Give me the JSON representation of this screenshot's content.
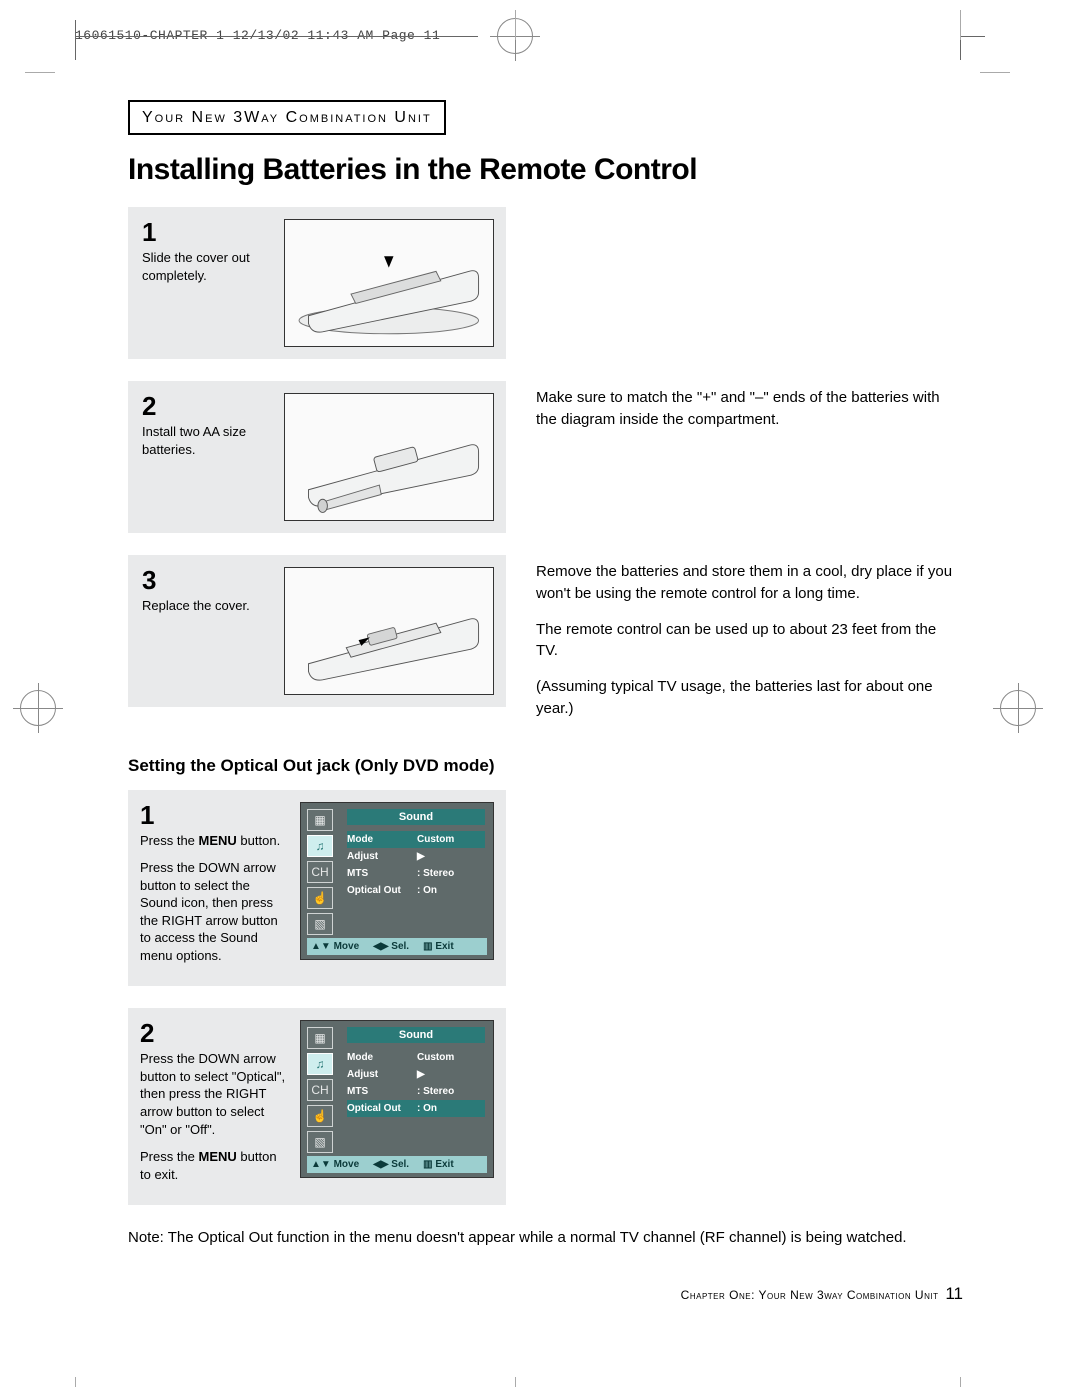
{
  "print_header": "16061510-CHAPTER 1  12/13/02 11:43 AM  Page 11",
  "section_label": "Your New 3Way Combination Unit",
  "main_heading": "Installing Batteries in the Remote Control",
  "steps": [
    {
      "num": "1",
      "desc": "Slide the cover out completely."
    },
    {
      "num": "2",
      "desc": "Install two AA size batteries."
    },
    {
      "num": "3",
      "desc": "Replace the cover."
    }
  ],
  "step2_side": "Make sure to match the \"+\" and \"–\" ends of the batteries with the diagram inside the compartment.",
  "step3_side_a": "Remove the batteries and store them in a cool, dry place if you won't be using the remote control for a long time.",
  "step3_side_b": "The remote control can be used up to about 23 feet from the TV.",
  "step3_side_c": "(Assuming typical TV usage, the batteries last for about one year.)",
  "sub_heading": "Setting the Optical Out jack (Only DVD mode)",
  "menu_steps": [
    {
      "num": "1",
      "desc_parts": [
        {
          "t": "Press the ",
          "b": false
        },
        {
          "t": "MENU",
          "b": true
        },
        {
          "t": " button.",
          "b": false
        }
      ],
      "desc2": "Press the DOWN arrow button to select  the Sound icon, then press the RIGHT arrow button to access the Sound menu options.",
      "highlight_row": 0
    },
    {
      "num": "2",
      "desc2": "Press the DOWN arrow button to select \"Optical\", then press the RIGHT arrow  button to select \"On\" or \"Off\".",
      "desc3_parts": [
        {
          "t": "Press the ",
          "b": false
        },
        {
          "t": "MENU",
          "b": true
        },
        {
          "t": " button to exit.",
          "b": false
        }
      ],
      "highlight_row": 3
    }
  ],
  "osd": {
    "title": "Sound",
    "rows": [
      {
        "k": "Mode",
        "v": "Custom"
      },
      {
        "k": "Adjust",
        "v": "▶"
      },
      {
        "k": "MTS",
        "v": ": Stereo"
      },
      {
        "k": "Optical Out",
        "v": ": On"
      }
    ],
    "footer": {
      "move": "Move",
      "sel": "Sel.",
      "exit": "Exit"
    },
    "icons": [
      "▦",
      "♫",
      "CH",
      "☝",
      "▧"
    ],
    "colors": {
      "bg": "#5f6a6a",
      "header": "#2b7a78",
      "footer": "#9ccfcf",
      "footer_text": "#0b3a3a",
      "text": "#ffffff",
      "icon_sel_bg": "#cfeeee"
    }
  },
  "note": "Note: The Optical Out function in the menu doesn't appear while a normal TV channel (RF channel) is being watched.",
  "footer": {
    "text": "Chapter One: Your New 3way Combination Unit",
    "page": "11"
  }
}
